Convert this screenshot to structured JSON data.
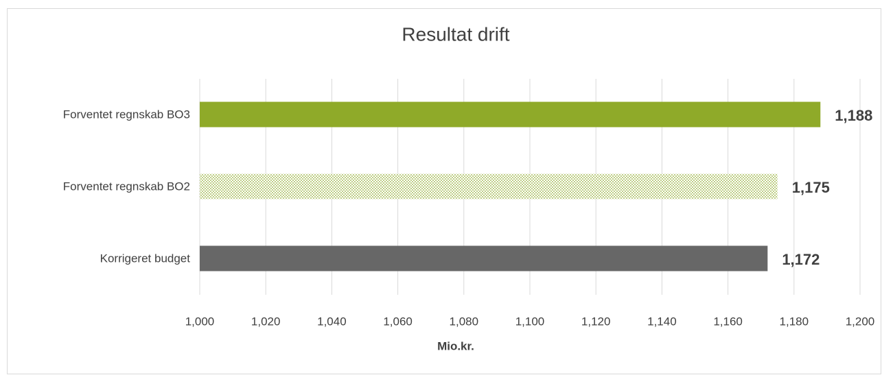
{
  "chart_data": {
    "type": "barh",
    "title": "Resultat drift",
    "x_label": "Mio.kr.",
    "categories": [
      "Forventet regnskab  BO3",
      "Forventet regnskab  BO2",
      "Korrigeret budget"
    ],
    "values": [
      1188,
      1175,
      1172
    ],
    "value_labels": [
      "1,188",
      "1,175",
      "1,172"
    ],
    "colors": [
      "#8faa29",
      "#8faa29",
      "#676767"
    ],
    "patterns": [
      "solid",
      "dots",
      "solid"
    ],
    "xlim": [
      1000,
      1200
    ],
    "xticks": [
      {
        "value": 1000,
        "label": "1,000"
      },
      {
        "value": 1020,
        "label": "1,020"
      },
      {
        "value": 1040,
        "label": "1,040"
      },
      {
        "value": 1060,
        "label": "1,060"
      },
      {
        "value": 1080,
        "label": "1,080"
      },
      {
        "value": 1100,
        "label": "1,100"
      },
      {
        "value": 1120,
        "label": "1,120"
      },
      {
        "value": 1140,
        "label": "1,140"
      },
      {
        "value": 1160,
        "label": "1,160"
      },
      {
        "value": 1180,
        "label": "1,180"
      },
      {
        "value": 1200,
        "label": "1,200"
      }
    ],
    "grid": true
  }
}
